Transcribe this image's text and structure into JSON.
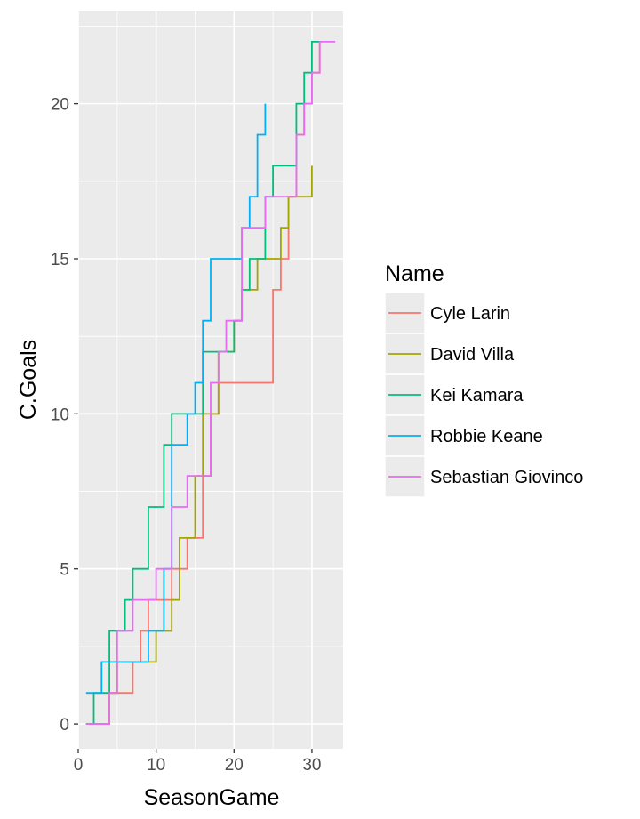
{
  "chart_data": {
    "type": "line",
    "title": "",
    "xlabel": "SeasonGame",
    "ylabel": "C.Goals",
    "xlim": [
      0,
      34
    ],
    "ylim": [
      -0.8,
      23
    ],
    "x_ticks": [
      "0",
      "10",
      "20",
      "30"
    ],
    "y_ticks": [
      "0",
      "5",
      "10",
      "15",
      "20"
    ],
    "grid": true,
    "legend": {
      "title": "Name",
      "position": "right"
    },
    "series": [
      {
        "name": "Cyle Larin",
        "color": "#F8766D",
        "x": [
          1,
          2,
          3,
          4,
          5,
          6,
          7,
          8,
          9,
          10,
          11,
          12,
          13,
          14,
          15,
          16,
          17,
          18,
          19,
          20,
          21,
          22,
          23,
          24,
          25,
          26,
          27,
          28,
          29,
          30,
          31
        ],
        "y": [
          0,
          0,
          0,
          1,
          1,
          1,
          2,
          3,
          4,
          4,
          4,
          5,
          5,
          6,
          6,
          8,
          10,
          11,
          11,
          11,
          11,
          11,
          11,
          11,
          14,
          15,
          17,
          19,
          20,
          21,
          22
        ]
      },
      {
        "name": "David Villa",
        "color": "#A3A500",
        "x": [
          1,
          2,
          3,
          4,
          5,
          6,
          7,
          8,
          9,
          10,
          11,
          12,
          13,
          14,
          15,
          16,
          17,
          18,
          19,
          20,
          21,
          22,
          23,
          24,
          25,
          26,
          27,
          28,
          29,
          30
        ],
        "y": [
          0,
          0,
          0,
          1,
          2,
          2,
          2,
          2,
          2,
          3,
          3,
          4,
          6,
          6,
          8,
          10,
          10,
          12,
          12,
          13,
          14,
          14,
          15,
          15,
          15,
          16,
          17,
          17,
          17,
          18
        ]
      },
      {
        "name": "Kei Kamara",
        "color": "#00BF7D",
        "x": [
          1,
          2,
          3,
          4,
          5,
          6,
          7,
          8,
          9,
          10,
          11,
          12,
          13,
          14,
          15,
          16,
          17,
          18,
          19,
          20,
          21,
          22,
          23,
          24,
          25,
          26,
          27,
          28,
          29,
          30,
          31
        ],
        "y": [
          0,
          1,
          1,
          3,
          3,
          4,
          5,
          5,
          7,
          7,
          9,
          10,
          10,
          10,
          10,
          12,
          12,
          12,
          12,
          13,
          14,
          15,
          15,
          17,
          18,
          18,
          18,
          20,
          21,
          22,
          22
        ]
      },
      {
        "name": "Robbie Keane",
        "color": "#00B0F6",
        "x": [
          1,
          2,
          3,
          4,
          5,
          6,
          7,
          8,
          9,
          10,
          11,
          12,
          13,
          14,
          15,
          16,
          17,
          18,
          19,
          20,
          21,
          22,
          23,
          24
        ],
        "y": [
          1,
          1,
          2,
          2,
          2,
          2,
          2,
          2,
          3,
          3,
          5,
          9,
          9,
          10,
          11,
          13,
          15,
          15,
          15,
          15,
          16,
          17,
          19,
          20
        ]
      },
      {
        "name": "Sebastian Giovinco",
        "color": "#E76BF3",
        "x": [
          1,
          2,
          3,
          4,
          5,
          6,
          7,
          8,
          9,
          10,
          11,
          12,
          13,
          14,
          15,
          16,
          17,
          18,
          19,
          20,
          21,
          22,
          23,
          24,
          25,
          26,
          27,
          28,
          29,
          30,
          31,
          32,
          33
        ],
        "y": [
          0,
          0,
          0,
          1,
          3,
          3,
          4,
          4,
          4,
          5,
          5,
          7,
          7,
          8,
          8,
          8,
          11,
          12,
          13,
          13,
          16,
          16,
          16,
          17,
          17,
          17,
          17,
          19,
          20,
          21,
          22,
          22,
          22
        ]
      }
    ]
  }
}
